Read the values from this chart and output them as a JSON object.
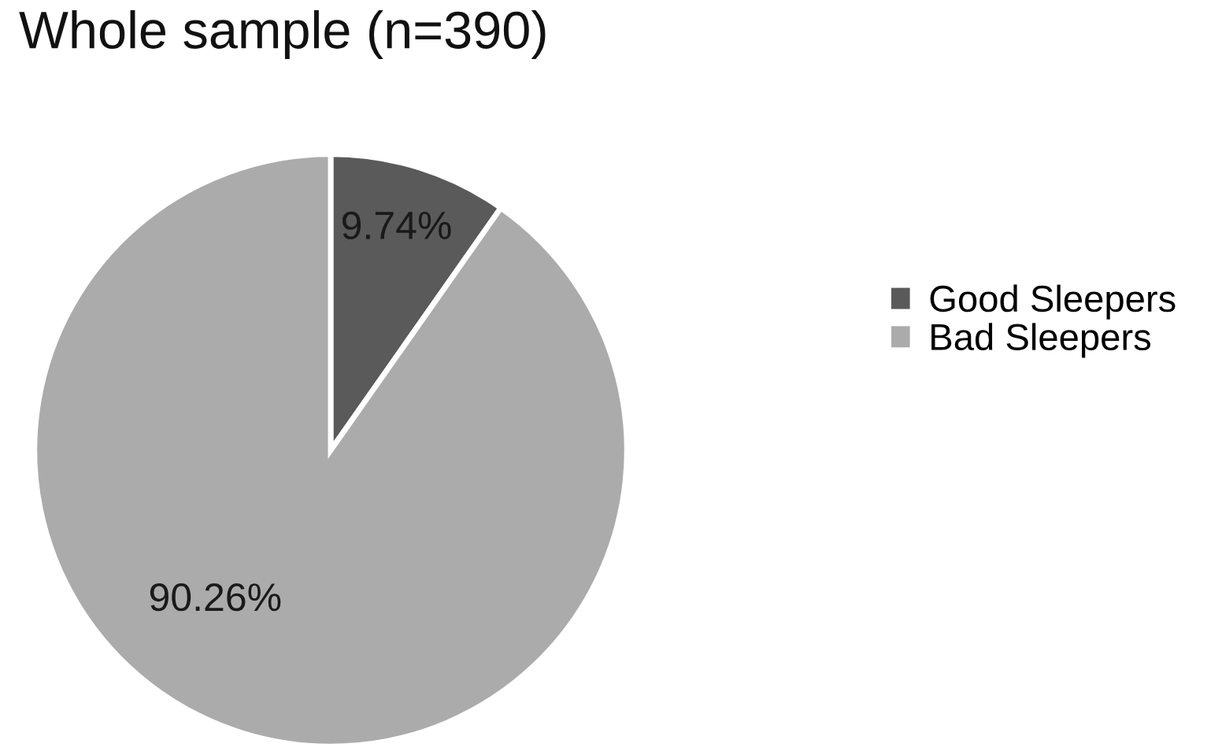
{
  "chart_data": {
    "type": "pie",
    "title": "Whole sample (n=390)",
    "categories": [
      "Good Sleepers",
      "Bad Sleepers"
    ],
    "values": [
      9.74,
      90.26
    ],
    "colors": [
      "#5a5a5a",
      "#ababab"
    ],
    "value_labels": [
      "9.74%",
      "90.26%"
    ],
    "legend": "right"
  }
}
